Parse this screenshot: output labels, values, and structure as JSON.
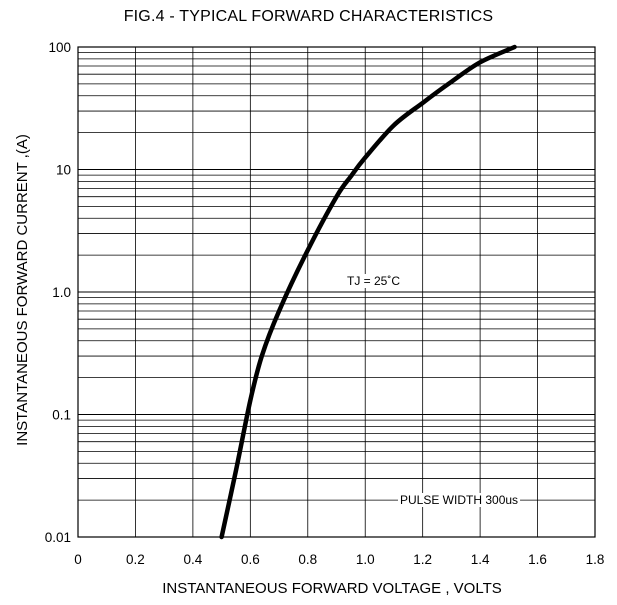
{
  "chart_data": {
    "type": "line",
    "title": "FIG.4 - TYPICAL FORWARD CHARACTERISTICS",
    "xlabel": "INSTANTANEOUS FORWARD VOLTAGE , VOLTS",
    "ylabel": "INSTANTANEOUS  FORWARD CURRENT ,(A)",
    "xlim": [
      0,
      1.8
    ],
    "ylim": [
      0.01,
      100
    ],
    "yscale": "log",
    "grid": true,
    "x_ticks": [
      "0",
      "0.2",
      "0.4",
      "0.6",
      "0.8",
      "1.0",
      "1.2",
      "1.4",
      "1.6",
      "1.8"
    ],
    "y_ticks": [
      {
        "value": 0.01,
        "label": "0.01"
      },
      {
        "value": 0.1,
        "label": "0.1"
      },
      {
        "value": 1,
        "label": "1.0"
      },
      {
        "value": 10,
        "label": "10"
      },
      {
        "value": 100,
        "label": "100"
      }
    ],
    "series": [
      {
        "x": [
          0.5,
          0.55,
          0.6,
          0.64,
          0.7,
          0.8,
          0.9,
          0.95,
          1.0,
          1.1,
          1.2,
          1.3,
          1.4,
          1.52
        ],
        "y": [
          0.01,
          0.035,
          0.13,
          0.3,
          0.7,
          2.2,
          6.0,
          8.8,
          12.5,
          23,
          35,
          52,
          75,
          100
        ]
      }
    ],
    "annotations": [
      "TJ = 25˚C",
      "PULSE WIDTH 300us"
    ]
  }
}
